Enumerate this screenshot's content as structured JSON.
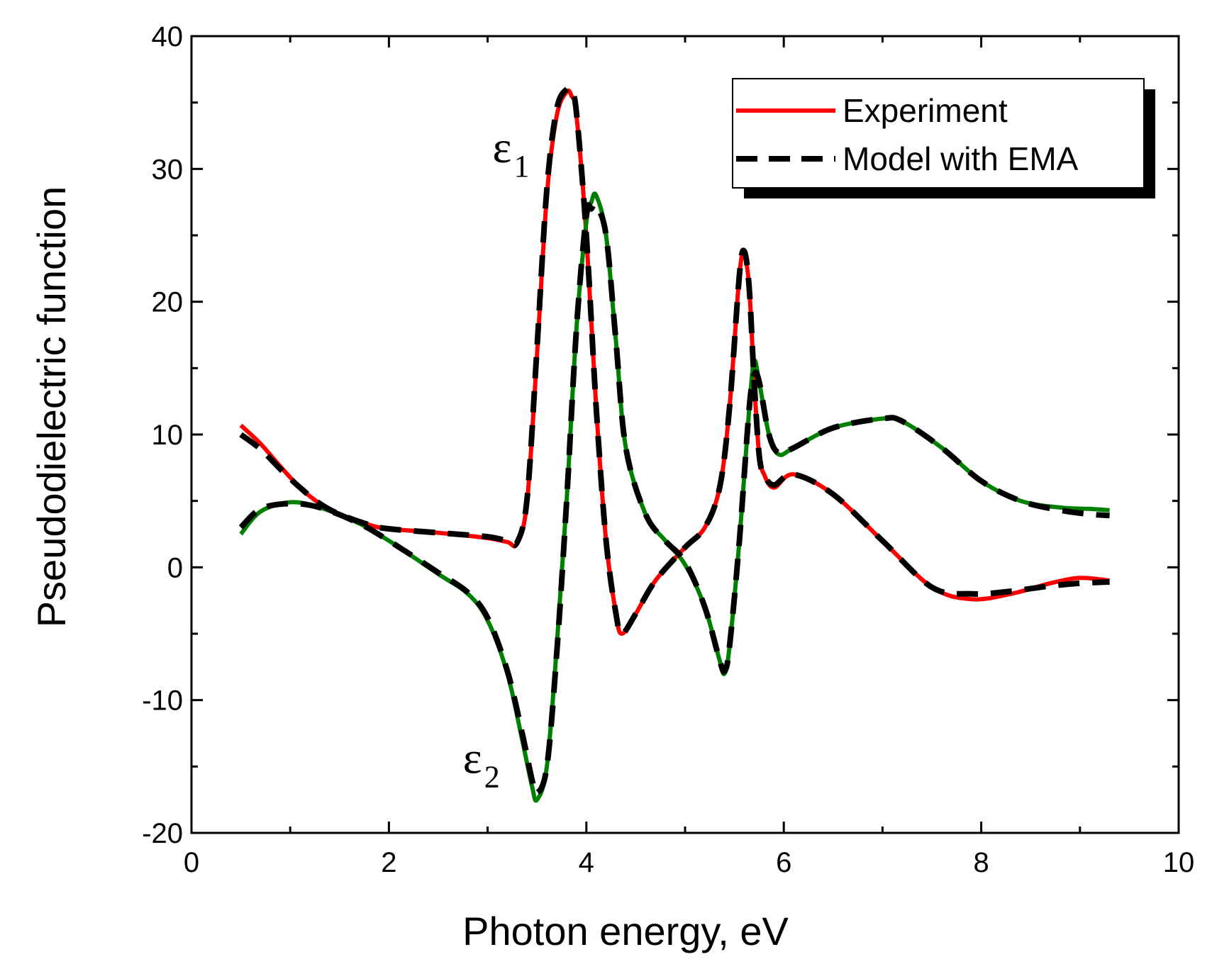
{
  "chart_data": {
    "type": "line",
    "title": "",
    "xlabel": "Photon energy, eV",
    "ylabel": "Pseudodielectric function",
    "xlim": [
      0,
      10
    ],
    "ylim": [
      -20,
      40
    ],
    "xticks": [
      0,
      2,
      4,
      6,
      8,
      10
    ],
    "yticks": [
      -20,
      -10,
      0,
      10,
      20,
      30,
      40
    ],
    "grid": false,
    "legend": {
      "placement": "top-right",
      "entries": [
        {
          "label": "Experiment",
          "style": "solid",
          "color": "#ff0000"
        },
        {
          "label": "Model with EMA",
          "style": "dashed",
          "color": "#000000"
        }
      ]
    },
    "annotations": [
      {
        "text": "ε",
        "subscript": "1",
        "x": 3.05,
        "y": 30.5
      },
      {
        "text": "ε",
        "subscript": "2",
        "x": 2.75,
        "y": -15.5
      }
    ],
    "series": [
      {
        "name": "ε1 Experiment",
        "color": "#ff0000",
        "style": "solid",
        "x": [
          0.5,
          0.7,
          0.9,
          1.1,
          1.3,
          1.5,
          1.8,
          2.0,
          2.5,
          3.0,
          3.2,
          3.3,
          3.4,
          3.5,
          3.6,
          3.7,
          3.8,
          3.85,
          3.9,
          4.0,
          4.1,
          4.2,
          4.3,
          4.36,
          4.5,
          4.7,
          5.0,
          5.2,
          5.35,
          5.45,
          5.55,
          5.6,
          5.65,
          5.7,
          5.75,
          5.8,
          5.9,
          6.1,
          6.5,
          7.0,
          7.5,
          7.9,
          8.3,
          8.7,
          9.0,
          9.3
        ],
        "y": [
          10.7,
          9.3,
          7.6,
          6.0,
          4.8,
          4.0,
          3.2,
          2.9,
          2.6,
          2.2,
          1.9,
          1.8,
          5.0,
          16.0,
          28.0,
          34.0,
          35.8,
          35.5,
          34.0,
          25.0,
          12.0,
          2.0,
          -3.5,
          -5.0,
          -3.5,
          -1.0,
          1.5,
          3.0,
          6.0,
          12.0,
          22.0,
          23.5,
          21.0,
          14.0,
          8.5,
          7.0,
          6.0,
          7.0,
          5.5,
          2.0,
          -1.5,
          -2.4,
          -2.0,
          -1.2,
          -0.8,
          -1.0
        ]
      },
      {
        "name": "ε2 Experiment",
        "color": "#008000",
        "style": "solid",
        "x": [
          0.5,
          0.7,
          1.0,
          1.3,
          1.7,
          2.0,
          2.5,
          2.8,
          3.0,
          3.2,
          3.35,
          3.45,
          3.5,
          3.6,
          3.7,
          3.8,
          3.9,
          4.0,
          4.05,
          4.1,
          4.2,
          4.3,
          4.4,
          4.6,
          4.8,
          5.0,
          5.2,
          5.35,
          5.4,
          5.45,
          5.55,
          5.65,
          5.7,
          5.75,
          5.85,
          5.95,
          6.1,
          6.5,
          7.0,
          7.2,
          7.6,
          8.0,
          8.4,
          8.8,
          9.1,
          9.3
        ],
        "y": [
          2.5,
          4.2,
          4.9,
          4.5,
          3.3,
          2.0,
          -0.5,
          -2.0,
          -4.0,
          -8.0,
          -13.0,
          -16.5,
          -17.5,
          -15.0,
          -6.0,
          5.0,
          18.0,
          26.0,
          27.5,
          28.0,
          25.0,
          17.0,
          9.0,
          4.0,
          2.0,
          0.2,
          -3.0,
          -7.0,
          -8.0,
          -6.0,
          2.0,
          12.0,
          15.5,
          14.0,
          10.0,
          8.5,
          9.0,
          10.5,
          11.2,
          11.0,
          9.0,
          6.5,
          5.0,
          4.5,
          4.4,
          4.3
        ]
      },
      {
        "name": "ε1 Model with EMA",
        "color": "#000000",
        "style": "dashed",
        "x": [
          0.5,
          0.7,
          0.9,
          1.1,
          1.3,
          1.5,
          1.8,
          2.0,
          2.5,
          3.0,
          3.2,
          3.3,
          3.4,
          3.5,
          3.6,
          3.7,
          3.8,
          3.85,
          3.9,
          4.0,
          4.1,
          4.2,
          4.3,
          4.36,
          4.5,
          4.7,
          5.0,
          5.2,
          5.35,
          5.45,
          5.55,
          5.6,
          5.65,
          5.7,
          5.75,
          5.8,
          5.9,
          6.1,
          6.5,
          7.0,
          7.5,
          7.9,
          8.3,
          8.7,
          9.0,
          9.3
        ],
        "y": [
          10.0,
          8.9,
          7.4,
          6.0,
          4.8,
          4.0,
          3.2,
          2.9,
          2.6,
          2.3,
          2.0,
          1.9,
          5.2,
          16.5,
          28.5,
          34.5,
          36.0,
          35.8,
          34.2,
          25.0,
          12.0,
          2.0,
          -3.5,
          -5.0,
          -3.5,
          -1.0,
          1.5,
          3.0,
          6.0,
          12.0,
          22.0,
          23.8,
          21.0,
          14.0,
          8.5,
          7.0,
          6.2,
          7.0,
          5.5,
          2.0,
          -1.5,
          -2.0,
          -1.8,
          -1.4,
          -1.2,
          -1.1
        ]
      },
      {
        "name": "ε2 Model with EMA",
        "color": "#000000",
        "style": "dashed",
        "x": [
          0.5,
          0.7,
          1.0,
          1.3,
          1.7,
          2.0,
          2.5,
          2.8,
          3.0,
          3.2,
          3.35,
          3.45,
          3.5,
          3.6,
          3.7,
          3.8,
          3.9,
          4.0,
          4.05,
          4.1,
          4.2,
          4.3,
          4.4,
          4.6,
          4.8,
          5.0,
          5.2,
          5.35,
          5.4,
          5.45,
          5.55,
          5.65,
          5.7,
          5.75,
          5.85,
          5.95,
          6.1,
          6.5,
          7.0,
          7.2,
          7.6,
          8.0,
          8.4,
          8.8,
          9.1,
          9.3
        ],
        "y": [
          3.0,
          4.4,
          4.8,
          4.5,
          3.3,
          2.0,
          -0.4,
          -1.9,
          -3.8,
          -7.8,
          -12.5,
          -16.0,
          -17.0,
          -15.0,
          -6.5,
          5.0,
          18.0,
          26.5,
          27.0,
          27.2,
          25.0,
          17.0,
          9.0,
          4.0,
          2.0,
          0.4,
          -3.0,
          -7.0,
          -7.8,
          -6.0,
          2.0,
          12.0,
          14.5,
          14.0,
          10.0,
          8.6,
          9.0,
          10.5,
          11.2,
          11.0,
          9.0,
          6.5,
          5.0,
          4.3,
          4.0,
          3.9
        ]
      }
    ]
  }
}
